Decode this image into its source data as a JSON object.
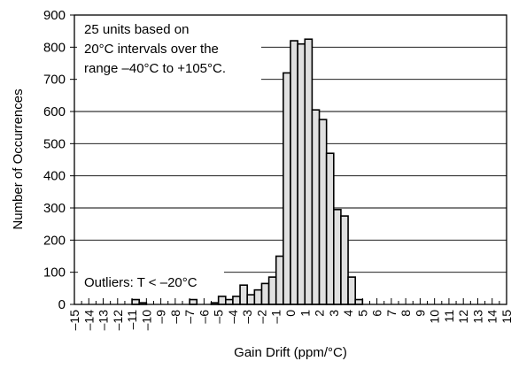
{
  "chart_data": {
    "type": "bar",
    "title": "",
    "xlabel": "Gain Drift (ppm/°C)",
    "ylabel": "Number of Occurrences",
    "ylim": [
      0,
      900
    ],
    "y_ticks": [
      0,
      100,
      200,
      300,
      400,
      500,
      600,
      700,
      800,
      900
    ],
    "x_tick_labels": [
      "–15",
      "–14",
      "–13",
      "–12",
      "–11",
      "–10",
      "–9",
      "–8",
      "–7",
      "–6",
      "–5",
      "–4",
      "–3",
      "–2",
      "–1",
      "0",
      "1",
      "2",
      "3",
      "4",
      "5",
      "6",
      "7",
      "8",
      "9",
      "10",
      "11",
      "12",
      "13",
      "14",
      "15"
    ],
    "bin_width": 0.5,
    "x_range": [
      -15,
      15
    ],
    "grid": "horizontal",
    "bar_fill": "#e0e0e0",
    "bar_stroke": "#000000",
    "bins": [
      {
        "x": -11.0,
        "value": 15
      },
      {
        "x": -10.5,
        "value": 5
      },
      {
        "x": -7.0,
        "value": 15
      },
      {
        "x": -5.5,
        "value": 5
      },
      {
        "x": -5.0,
        "value": 25
      },
      {
        "x": -4.5,
        "value": 15
      },
      {
        "x": -4.0,
        "value": 25
      },
      {
        "x": -3.5,
        "value": 60
      },
      {
        "x": -3.0,
        "value": 30
      },
      {
        "x": -2.5,
        "value": 45
      },
      {
        "x": -2.0,
        "value": 65
      },
      {
        "x": -1.5,
        "value": 85
      },
      {
        "x": -1.0,
        "value": 150
      },
      {
        "x": -0.5,
        "value": 720
      },
      {
        "x": 0.0,
        "value": 820
      },
      {
        "x": 0.5,
        "value": 810
      },
      {
        "x": 1.0,
        "value": 825
      },
      {
        "x": 1.5,
        "value": 605
      },
      {
        "x": 2.0,
        "value": 575
      },
      {
        "x": 2.5,
        "value": 470
      },
      {
        "x": 3.0,
        "value": 295
      },
      {
        "x": 3.5,
        "value": 275
      },
      {
        "x": 4.0,
        "value": 85
      },
      {
        "x": 4.5,
        "value": 15
      }
    ],
    "annotations": [
      {
        "text": "25 units based on"
      },
      {
        "text": "20°C intervals over the"
      },
      {
        "text": "range –40°C to +105°C."
      },
      {
        "text": "Outliers: T < –20°C"
      }
    ]
  }
}
